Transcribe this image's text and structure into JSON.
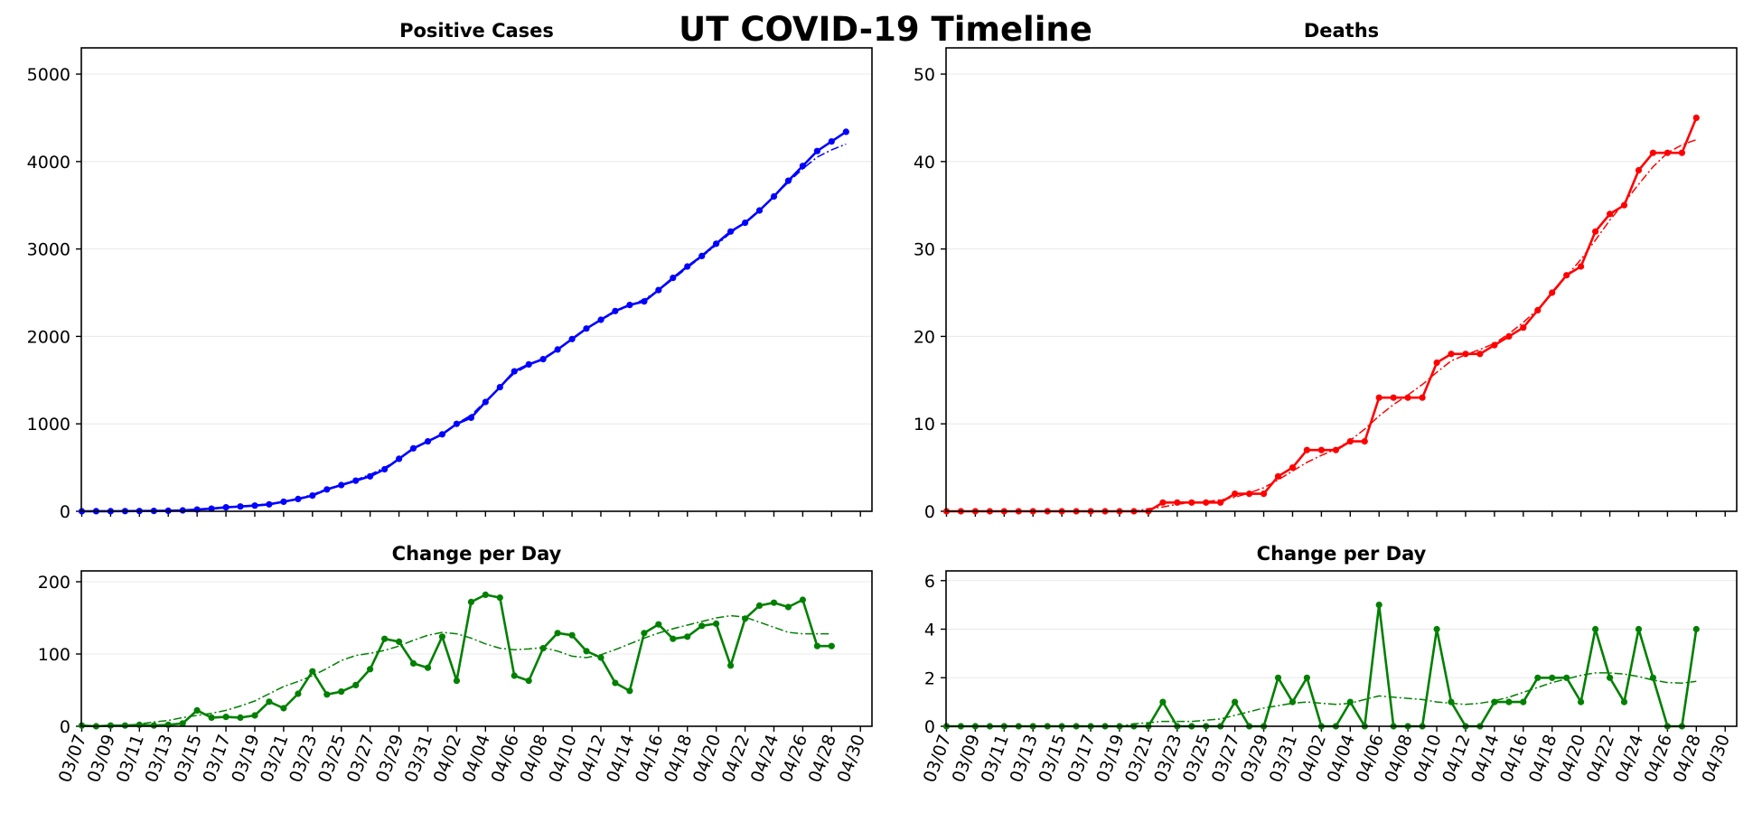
{
  "suptitle": "UT COVID-19 Timeline",
  "chart_data": [
    {
      "id": "cases",
      "type": "line",
      "title": "Positive Cases",
      "xlabel": "",
      "ylabel": "",
      "x_start": "03/07",
      "xticks": [
        "03/07",
        "03/09",
        "03/11",
        "03/13",
        "03/15",
        "03/17",
        "03/19",
        "03/21",
        "03/23",
        "03/25",
        "03/27",
        "03/29",
        "03/31",
        "04/02",
        "04/04",
        "04/06",
        "04/08",
        "04/10",
        "04/12",
        "04/14",
        "04/16",
        "04/18",
        "04/20",
        "04/22",
        "04/24",
        "04/26",
        "04/28",
        "04/30"
      ],
      "show_xtick_labels": false,
      "ylim": [
        0,
        5300
      ],
      "yticks": [
        0,
        1000,
        2000,
        3000,
        4000,
        5000
      ],
      "grid": true,
      "color": "#0000ff",
      "values": [
        0,
        1,
        1,
        2,
        3,
        4,
        6,
        10,
        20,
        30,
        45,
        55,
        65,
        80,
        110,
        140,
        180,
        250,
        300,
        350,
        400,
        480,
        600,
        720,
        800,
        880,
        1000,
        1070,
        1250,
        1420,
        1600,
        1680,
        1740,
        1850,
        1970,
        2090,
        2190,
        2290,
        2360,
        2400,
        2530,
        2670,
        2800,
        2920,
        3060,
        3200,
        3300,
        3440,
        3600,
        3780,
        3950,
        4120,
        4230,
        4340
      ],
      "trend": [
        0,
        1,
        1,
        2,
        3,
        4,
        6,
        10,
        17,
        26,
        39,
        53,
        68,
        86,
        112,
        145,
        192,
        256,
        306,
        359,
        421,
        499,
        599,
        709,
        800,
        890,
        1002,
        1099,
        1258,
        1425,
        1579,
        1671,
        1753,
        1850,
        1966,
        2085,
        2184,
        2280,
        2353,
        2424,
        2527,
        2655,
        2785,
        2911,
        3044,
        3184,
        3307,
        3444,
        3602,
        3763,
        3918,
        4051,
        4134,
        4200
      ]
    },
    {
      "id": "deaths",
      "type": "line",
      "title": "Deaths",
      "xlabel": "",
      "ylabel": "",
      "x_start": "03/07",
      "xticks": [
        "03/07",
        "03/09",
        "03/11",
        "03/13",
        "03/15",
        "03/17",
        "03/19",
        "03/21",
        "03/23",
        "03/25",
        "03/27",
        "03/29",
        "03/31",
        "04/02",
        "04/04",
        "04/06",
        "04/08",
        "04/10",
        "04/12",
        "04/14",
        "04/16",
        "04/18",
        "04/20",
        "04/22",
        "04/24",
        "04/26",
        "04/28",
        "04/30"
      ],
      "show_xtick_labels": false,
      "ylim": [
        0,
        53
      ],
      "yticks": [
        0,
        10,
        20,
        30,
        40,
        50
      ],
      "grid": true,
      "color": "#ff0000",
      "values": [
        0,
        0,
        0,
        0,
        0,
        0,
        0,
        0,
        0,
        0,
        0,
        0,
        0,
        0,
        0,
        1,
        1,
        1,
        1,
        1,
        2,
        2,
        2,
        4,
        5,
        7,
        7,
        7,
        8,
        8,
        13,
        13,
        13,
        13,
        17,
        18,
        18,
        18,
        19,
        20,
        21,
        23,
        25,
        27,
        28,
        32,
        34,
        35,
        39,
        41,
        41,
        41,
        45
      ],
      "trend": [
        0,
        0,
        0,
        0,
        0,
        0,
        0,
        0,
        0,
        0,
        0,
        0,
        0,
        0,
        0.3,
        0.5,
        0.8,
        1.0,
        1.1,
        1.3,
        1.6,
        2.1,
        2.7,
        3.6,
        4.6,
        5.6,
        6.4,
        7.1,
        8.1,
        9.4,
        10.9,
        12.2,
        13.3,
        14.5,
        15.9,
        17.2,
        17.9,
        18.5,
        19.2,
        20.3,
        21.6,
        23.1,
        24.9,
        26.9,
        28.8,
        31.0,
        33.3,
        35.3,
        37.4,
        39.4,
        41.0,
        41.9,
        42.5
      ]
    },
    {
      "id": "cases_change",
      "type": "line",
      "title": "Change per Day",
      "xlabel": "",
      "ylabel": "",
      "x_start": "03/07",
      "xticks": [
        "03/07",
        "03/09",
        "03/11",
        "03/13",
        "03/15",
        "03/17",
        "03/19",
        "03/21",
        "03/23",
        "03/25",
        "03/27",
        "03/29",
        "03/31",
        "04/02",
        "04/04",
        "04/06",
        "04/08",
        "04/10",
        "04/12",
        "04/14",
        "04/16",
        "04/18",
        "04/20",
        "04/22",
        "04/24",
        "04/26",
        "04/28",
        "04/30"
      ],
      "show_xtick_labels": true,
      "ylim": [
        0,
        215
      ],
      "yticks": [
        0,
        100,
        200
      ],
      "grid": true,
      "color": "#008000",
      "values": [
        1,
        0,
        1,
        1,
        2,
        1,
        2,
        4,
        22,
        12,
        13,
        12,
        15,
        34,
        25,
        45,
        76,
        44,
        48,
        57,
        79,
        121,
        117,
        87,
        81,
        124,
        63,
        172,
        182,
        178,
        70,
        63,
        108,
        129,
        126,
        104,
        95,
        60,
        49,
        129,
        141,
        121,
        124,
        139,
        142,
        84,
        149,
        167,
        171,
        165,
        175,
        111,
        111
      ],
      "trend": [
        1,
        1,
        1,
        1,
        3,
        6,
        8,
        12,
        15,
        18,
        22,
        28,
        35,
        45,
        55,
        62,
        70,
        80,
        91,
        98,
        101,
        105,
        111,
        119,
        126,
        130,
        128,
        122,
        114,
        108,
        106,
        107,
        109,
        104,
        97,
        95,
        99,
        106,
        114,
        122,
        129,
        135,
        140,
        145,
        150,
        153,
        151,
        144,
        137,
        130,
        128,
        128,
        128
      ]
    },
    {
      "id": "deaths_change",
      "type": "line",
      "title": "Change per Day",
      "xlabel": "",
      "ylabel": "",
      "x_start": "03/07",
      "xticks": [
        "03/07",
        "03/09",
        "03/11",
        "03/13",
        "03/15",
        "03/17",
        "03/19",
        "03/21",
        "03/23",
        "03/25",
        "03/27",
        "03/29",
        "03/31",
        "04/02",
        "04/04",
        "04/06",
        "04/08",
        "04/10",
        "04/12",
        "04/14",
        "04/16",
        "04/18",
        "04/20",
        "04/22",
        "04/24",
        "04/26",
        "04/28",
        "04/30"
      ],
      "show_xtick_labels": true,
      "ylim": [
        0,
        6.4
      ],
      "yticks": [
        0,
        2,
        4,
        6
      ],
      "grid": true,
      "color": "#008000",
      "values": [
        0,
        0,
        0,
        0,
        0,
        0,
        0,
        0,
        0,
        0,
        0,
        0,
        0,
        0,
        0,
        1,
        0,
        0,
        0,
        0,
        1,
        0,
        0,
        2,
        1,
        2,
        0,
        0,
        1,
        0,
        5,
        0,
        0,
        0,
        4,
        1,
        0,
        0,
        1,
        1,
        1,
        2,
        2,
        2,
        1,
        4,
        2,
        1,
        4,
        2,
        0,
        0,
        4
      ],
      "trend": [
        0,
        0,
        0,
        0,
        0,
        0,
        0,
        0,
        0,
        0,
        0,
        0,
        0,
        0.1,
        0.15,
        0.2,
        0.2,
        0.2,
        0.25,
        0.3,
        0.45,
        0.6,
        0.75,
        0.85,
        0.95,
        1.0,
        0.95,
        0.9,
        0.95,
        1.1,
        1.25,
        1.2,
        1.15,
        1.1,
        1.0,
        0.95,
        0.9,
        0.95,
        1.05,
        1.2,
        1.4,
        1.6,
        1.8,
        1.95,
        2.1,
        2.2,
        2.2,
        2.15,
        2.05,
        1.9,
        1.8,
        1.78,
        1.85
      ]
    }
  ]
}
